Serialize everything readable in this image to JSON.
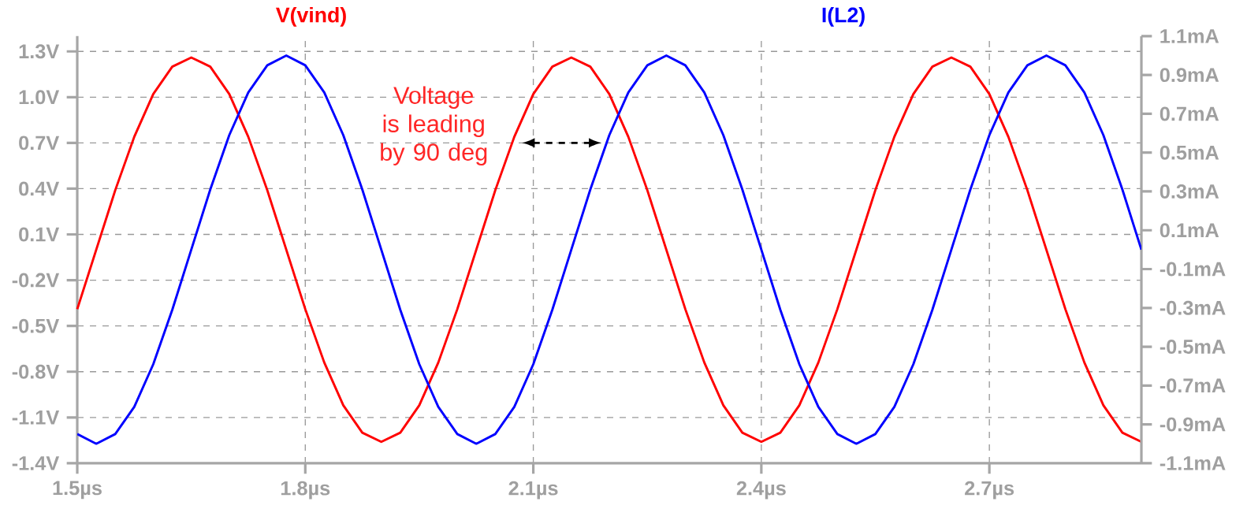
{
  "chart_data": {
    "type": "line",
    "x": [
      1.5,
      1.525,
      1.55,
      1.575,
      1.6,
      1.625,
      1.65,
      1.675,
      1.7,
      1.725,
      1.75,
      1.775,
      1.8,
      1.825,
      1.85,
      1.875,
      1.9,
      1.925,
      1.95,
      1.975,
      2.0,
      2.025,
      2.05,
      2.075,
      2.1,
      2.125,
      2.15,
      2.175,
      2.2,
      2.225,
      2.25,
      2.275,
      2.3,
      2.325,
      2.35,
      2.375,
      2.4,
      2.425,
      2.45,
      2.475,
      2.5,
      2.525,
      2.55,
      2.575,
      2.6,
      2.625,
      2.65,
      2.675,
      2.7,
      2.725,
      2.75,
      2.775,
      2.8,
      2.825,
      2.85,
      2.875,
      2.9
    ],
    "series": [
      {
        "name": "V(vind)",
        "color": "#ff0000",
        "values": [
          -0.39,
          0,
          0.39,
          0.74,
          1.02,
          1.2,
          1.26,
          1.2,
          1.02,
          0.74,
          0.39,
          0,
          -0.39,
          -0.74,
          -1.02,
          -1.2,
          -1.26,
          -1.2,
          -1.02,
          -0.74,
          -0.39,
          0,
          0.39,
          0.74,
          1.02,
          1.2,
          1.26,
          1.2,
          1.02,
          0.74,
          0.39,
          0,
          -0.39,
          -0.74,
          -1.02,
          -1.2,
          -1.26,
          -1.2,
          -1.02,
          -0.74,
          -0.39,
          0,
          0.39,
          0.74,
          1.02,
          1.2,
          1.26,
          1.2,
          1.02,
          0.74,
          0.39,
          0,
          -0.39,
          -0.74,
          -1.02,
          -1.2,
          -1.26
        ]
      },
      {
        "name": "I(L2)",
        "color": "#0000ff",
        "axis": "y2",
        "values": [
          -0.95,
          -1,
          -0.95,
          -0.81,
          -0.59,
          -0.31,
          0,
          0.31,
          0.59,
          0.81,
          0.95,
          1,
          0.95,
          0.81,
          0.59,
          0.31,
          0,
          -0.31,
          -0.59,
          -0.81,
          -0.95,
          -1,
          -0.95,
          -0.81,
          -0.59,
          -0.31,
          0,
          0.31,
          0.59,
          0.81,
          0.95,
          1,
          0.95,
          0.81,
          0.59,
          0.31,
          0,
          -0.31,
          -0.59,
          -0.81,
          -0.95,
          -1,
          -0.95,
          -0.81,
          -0.59,
          -0.31,
          0,
          0.31,
          0.59,
          0.81,
          0.95,
          1,
          0.95,
          0.81,
          0.59,
          0.31,
          0
        ]
      }
    ],
    "xlim": [
      1.5,
      2.9
    ],
    "xticks": [
      {
        "value": 1.5,
        "label": "1.5µs"
      },
      {
        "value": 1.8,
        "label": "1.8µs"
      },
      {
        "value": 2.1,
        "label": "2.1µs"
      },
      {
        "value": 2.4,
        "label": "2.4µs"
      },
      {
        "value": 2.7,
        "label": "2.7µs"
      }
    ],
    "ylim": [
      -1.4,
      1.4
    ],
    "yticks": [
      {
        "value": -1.4,
        "label": "-1.4V"
      },
      {
        "value": -1.1,
        "label": "-1.1V"
      },
      {
        "value": -0.8,
        "label": "-0.8V"
      },
      {
        "value": -0.5,
        "label": "-0.5V"
      },
      {
        "value": -0.2,
        "label": "-0.2V"
      },
      {
        "value": 0.1,
        "label": "0.1V"
      },
      {
        "value": 0.4,
        "label": "0.4V"
      },
      {
        "value": 0.7,
        "label": "0.7V"
      },
      {
        "value": 1.0,
        "label": "1.0V"
      },
      {
        "value": 1.3,
        "label": "1.3V"
      }
    ],
    "y2lim": [
      -1.1,
      1.1
    ],
    "y2ticks": [
      {
        "value": -1.1,
        "label": "-1.1mA"
      },
      {
        "value": -0.9,
        "label": "-0.9mA"
      },
      {
        "value": -0.7,
        "label": "-0.7mA"
      },
      {
        "value": -0.5,
        "label": "-0.5mA"
      },
      {
        "value": -0.3,
        "label": "-0.3mA"
      },
      {
        "value": -0.1,
        "label": "-0.1mA"
      },
      {
        "value": 0.1,
        "label": "0.1mA"
      },
      {
        "value": 0.3,
        "label": "0.3mA"
      },
      {
        "value": 0.5,
        "label": "0.5mA"
      },
      {
        "value": 0.7,
        "label": "0.7mA"
      },
      {
        "value": 0.9,
        "label": "0.9mA"
      },
      {
        "value": 1.1,
        "label": "1.1mA"
      }
    ],
    "grid": true,
    "annotations": [
      "Voltage is leading by 90 deg"
    ]
  }
}
